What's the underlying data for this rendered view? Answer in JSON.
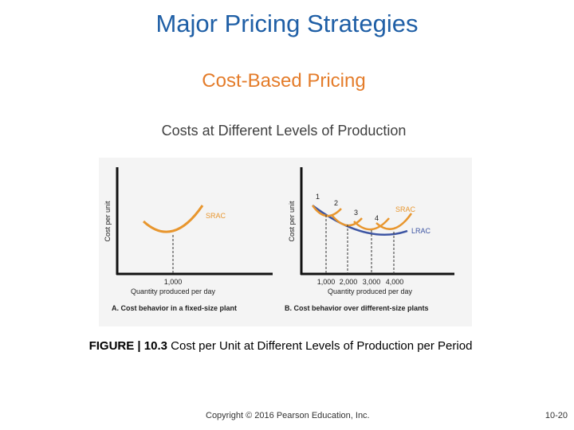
{
  "slide": {
    "title": "Major Pricing Strategies",
    "subtitle": "Cost-Based Pricing",
    "section_heading": "Costs at Different Levels of Production",
    "figure_label": "FIGURE | 10.3",
    "figure_caption": "Cost per Unit at Different Levels of Production per Period",
    "copyright": "Copyright © 2016 Pearson Education, Inc.",
    "page_number": "10-20"
  },
  "colors": {
    "title": "#1f5fa6",
    "subtitle": "#e47c2a",
    "srac": "#e8962e",
    "lrac": "#3d55a3",
    "axis": "#111111"
  },
  "figure": {
    "panel_a": {
      "y_axis_label": "Cost per unit",
      "curve_label": "SRAC",
      "x_tick": "1,000",
      "x_axis_label": "Quantity produced per day",
      "caption": "A. Cost behavior in a fixed-size plant"
    },
    "panel_b": {
      "y_axis_label": "Cost per unit",
      "srac_label": "SRAC",
      "lrac_label": "LRAC",
      "curve_numbers": [
        "1",
        "2",
        "3",
        "4"
      ],
      "x_ticks": [
        "1,000",
        "2,000",
        "3,000",
        "4,000"
      ],
      "x_axis_label": "Quantity produced per day",
      "caption": "B. Cost behavior over different-size plants"
    }
  }
}
